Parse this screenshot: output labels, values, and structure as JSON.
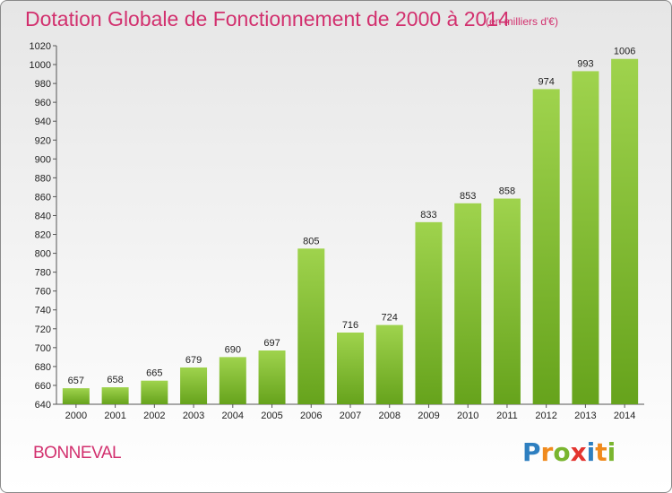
{
  "title": "Dotation Globale de Fonctionnement de 2000 à 2014",
  "subtitle": "(en milliers d'€)",
  "commune": "BONNEVAL",
  "logo": {
    "letters": [
      "P",
      "r",
      "o",
      "x",
      "i",
      "t",
      "i"
    ],
    "colors": [
      "#2e7fc0",
      "#f08a1d",
      "#7ab52f",
      "#e3342f",
      "#2e7fc0",
      "#f08a1d",
      "#7ab52f"
    ]
  },
  "colors": {
    "bar_light": "#9fd34d",
    "bar_dark": "#66a31c",
    "title": "#d2306e"
  },
  "chart_data": {
    "type": "bar",
    "categories": [
      "2000",
      "2001",
      "2002",
      "2003",
      "2004",
      "2005",
      "2006",
      "2007",
      "2008",
      "2009",
      "2010",
      "2011",
      "2012",
      "2013",
      "2014"
    ],
    "values": [
      657,
      658,
      665,
      679,
      690,
      697,
      805,
      716,
      724,
      833,
      853,
      858,
      974,
      993,
      1006
    ],
    "ylim": [
      640,
      1020
    ],
    "yticks": [
      640,
      660,
      680,
      700,
      720,
      740,
      760,
      780,
      800,
      820,
      840,
      860,
      880,
      900,
      920,
      940,
      960,
      980,
      1000,
      1020
    ],
    "grid": false,
    "xlabel": "",
    "ylabel": ""
  }
}
